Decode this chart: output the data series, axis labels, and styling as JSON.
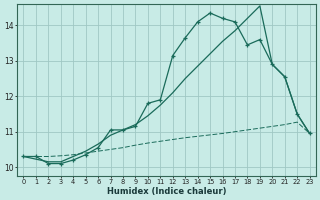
{
  "xlabel": "Humidex (Indice chaleur)",
  "bg_color": "#c8ebe6",
  "grid_color": "#a0c8c4",
  "line_color": "#1a6b5a",
  "xlim_min": -0.5,
  "xlim_max": 23.5,
  "ylim_min": 9.75,
  "ylim_max": 14.6,
  "xticks": [
    0,
    1,
    2,
    3,
    4,
    5,
    6,
    7,
    8,
    9,
    10,
    11,
    12,
    13,
    14,
    15,
    16,
    17,
    18,
    19,
    20,
    21,
    22,
    23
  ],
  "yticks": [
    10,
    11,
    12,
    13,
    14
  ],
  "curve1_x": [
    0,
    1,
    2,
    3,
    4,
    5,
    6,
    7,
    8,
    9,
    10,
    11,
    12,
    13,
    14,
    15,
    16,
    17,
    18,
    19,
    20,
    21,
    22,
    23
  ],
  "curve1_y": [
    10.3,
    10.3,
    10.1,
    10.1,
    10.2,
    10.35,
    10.55,
    11.05,
    11.05,
    11.15,
    11.8,
    11.9,
    13.15,
    13.65,
    14.1,
    14.35,
    14.2,
    14.1,
    13.45,
    13.6,
    12.9,
    12.55,
    11.5,
    10.95
  ],
  "curve2_x": [
    0,
    2,
    3,
    4,
    5,
    6,
    7,
    8,
    9,
    10,
    11,
    12,
    13,
    14,
    15,
    16,
    17,
    18,
    19,
    20,
    21,
    22,
    23
  ],
  "curve2_y": [
    10.3,
    10.15,
    10.15,
    10.3,
    10.45,
    10.65,
    10.9,
    11.05,
    11.2,
    11.45,
    11.75,
    12.1,
    12.5,
    12.85,
    13.2,
    13.55,
    13.85,
    14.2,
    14.55,
    12.9,
    12.55,
    11.5,
    10.95
  ],
  "curve3_x": [
    0,
    1,
    2,
    3,
    4,
    5,
    6,
    7,
    8,
    9,
    10,
    11,
    12,
    13,
    14,
    15,
    16,
    17,
    18,
    19,
    20,
    21,
    22,
    23
  ],
  "curve3_y": [
    10.3,
    10.3,
    10.3,
    10.32,
    10.35,
    10.4,
    10.45,
    10.5,
    10.55,
    10.62,
    10.68,
    10.73,
    10.78,
    10.83,
    10.87,
    10.91,
    10.95,
    11.0,
    11.05,
    11.1,
    11.15,
    11.2,
    11.27,
    10.95
  ]
}
